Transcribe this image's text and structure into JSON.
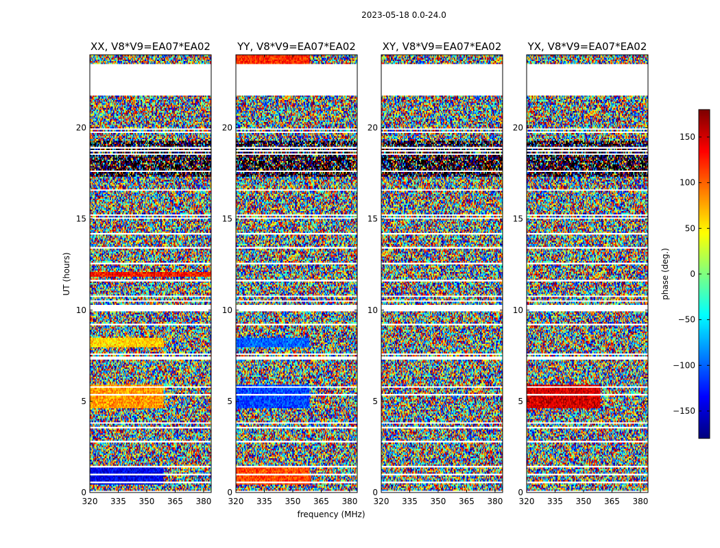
{
  "chart_data": {
    "type": "heatmap",
    "suptitle": "2023-05-18 0.0-24.0",
    "xlabel": "frequency (MHz)",
    "ylabel": "UT (hours)",
    "xlim": [
      320,
      384
    ],
    "ylim": [
      0,
      24
    ],
    "xticks": [
      "320",
      "335",
      "350",
      "365",
      "380"
    ],
    "yticks": [
      "0",
      "5",
      "10",
      "15",
      "20"
    ],
    "colorbar": {
      "label": "phase (deg.)",
      "range": [
        -180,
        180
      ],
      "ticks": [
        "150",
        "100",
        "50",
        "0",
        "−50",
        "−100",
        "−150"
      ],
      "colormap": "jet"
    },
    "panels": [
      {
        "title": "XX, V8*V9=EA07*EA02",
        "pol": "XX"
      },
      {
        "title": "YY, V8*V9=EA07*EA02",
        "pol": "YY"
      },
      {
        "title": "XY, V8*V9=EA07*EA02",
        "pol": "XY"
      },
      {
        "title": "YX, V8*V9=EA07*EA02",
        "pol": "YX"
      }
    ],
    "blank_ut_ranges": [
      [
        21.8,
        23.5
      ]
    ],
    "structured_phase": {
      "XX": [
        {
          "ut": [
            0.4,
            1.4
          ],
          "freq": [
            320,
            359
          ],
          "phase": -140
        },
        {
          "ut": [
            4.6,
            5.9
          ],
          "freq": [
            320,
            359
          ],
          "phase": 80
        },
        {
          "ut": [
            8.0,
            8.5
          ],
          "freq": [
            320,
            359
          ],
          "phase": 60
        },
        {
          "ut": [
            11.8,
            12.1
          ],
          "freq": [
            320,
            384
          ],
          "phase": 130
        }
      ],
      "YY": [
        {
          "ut": [
            0.4,
            1.4
          ],
          "freq": [
            320,
            359
          ],
          "phase": 110
        },
        {
          "ut": [
            4.6,
            5.9
          ],
          "freq": [
            320,
            359
          ],
          "phase": -110
        },
        {
          "ut": [
            8.0,
            8.5
          ],
          "freq": [
            320,
            359
          ],
          "phase": -100
        },
        {
          "ut": [
            23.0,
            24.0
          ],
          "freq": [
            320,
            359
          ],
          "phase": 120
        }
      ],
      "XY": [],
      "YX": [
        {
          "ut": [
            4.6,
            5.9
          ],
          "freq": [
            320,
            359
          ],
          "phase": 150
        }
      ]
    }
  }
}
